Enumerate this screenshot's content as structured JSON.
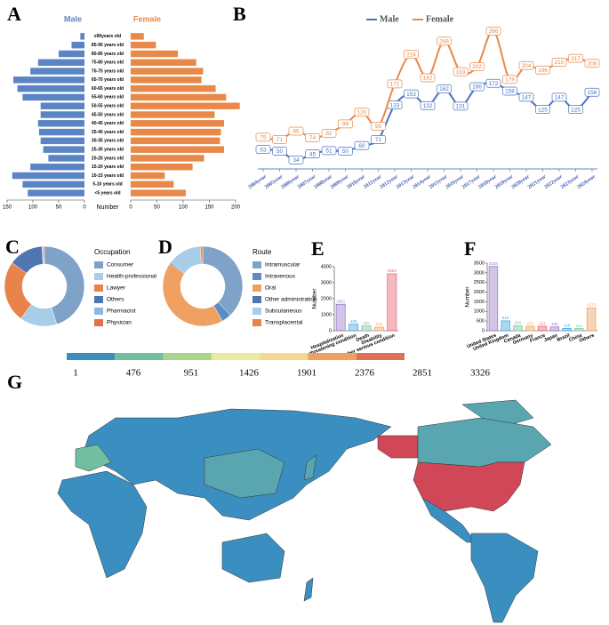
{
  "chart_data": [
    {
      "type": "pyramid",
      "panel_label": "A",
      "categories": [
        "≥90years old",
        "85-90 years old",
        "80-85 years old",
        "75-80 years old",
        "70-75 years old",
        "65-70 years old",
        "60-65 years old",
        "55-60 years old",
        "50-55 years old",
        "45-50 years old",
        "40-45 years old",
        "35-40 years old",
        "30-35 years old",
        "25-30 years old",
        "20-25 years old",
        "15-20 years old",
        "10-15 years old",
        "5-10 years old",
        "<5 years old"
      ],
      "series": [
        {
          "name": "Male",
          "color": "#5b84c4",
          "values": [
            8,
            25,
            50,
            90,
            105,
            138,
            130,
            120,
            85,
            85,
            90,
            88,
            85,
            80,
            70,
            105,
            140,
            120,
            110
          ]
        },
        {
          "name": "Female",
          "color": "#e8894a",
          "values": [
            25,
            48,
            90,
            125,
            138,
            135,
            162,
            182,
            208,
            160,
            178,
            172,
            170,
            178,
            140,
            118,
            65,
            82,
            105
          ]
        }
      ],
      "xlabel": "Number",
      "xlim_left": [
        0,
        150
      ],
      "xticks_left": [
        150,
        100,
        50,
        0
      ],
      "xlim_right": [
        0,
        200
      ],
      "xticks_right": [
        0,
        50,
        100,
        150,
        200
      ]
    },
    {
      "type": "line",
      "panel_label": "B",
      "categories": [
        "2004year",
        "2005year",
        "2006year",
        "2007year",
        "2008year",
        "2009year",
        "2010year",
        "2011year",
        "2012year",
        "2013year",
        "2014year",
        "2015year",
        "2016year",
        "2017year",
        "2018year",
        "2019year",
        "2020year",
        "2021year",
        "2022year",
        "2023year",
        "2024year"
      ],
      "series": [
        {
          "name": "Male",
          "color": "#4a74c0",
          "values": [
            53,
            50,
            34,
            45,
            51,
            50,
            60,
            71,
            133,
            153,
            132,
            162,
            131,
            166,
            172,
            158,
            147,
            125,
            147,
            125,
            156
          ]
        },
        {
          "name": "Female",
          "color": "#e8894a",
          "values": [
            75,
            71,
            86,
            74,
            82,
            99,
            120,
            95,
            171,
            224,
            182,
            248,
            193,
            202,
            266,
            179,
            204,
            196,
            210,
            217,
            208
          ]
        }
      ]
    },
    {
      "type": "donut",
      "panel_label": "C",
      "legend_title": "Occupation",
      "categories": [
        "Consumer",
        "Health-professional",
        "Lawyer",
        "Others",
        "Pharmacist",
        "Physician"
      ],
      "values": [
        45,
        15,
        25,
        14,
        0.5,
        0.5
      ],
      "colors": [
        "#7fa3c8",
        "#a8cde8",
        "#e8834a",
        "#4f76b0",
        "#8fb8de",
        "#e0704a"
      ]
    },
    {
      "type": "donut",
      "panel_label": "D",
      "legend_title": "Route",
      "categories": [
        "Intramuscular",
        "Intravenous",
        "Oral",
        "Other administration",
        "Subcutaneous",
        "Transplacental"
      ],
      "values": [
        38,
        4,
        43,
        0.5,
        14,
        1
      ],
      "colors": [
        "#7fa3c8",
        "#5d8cc4",
        "#f0a060",
        "#4f76b0",
        "#a8cde8",
        "#e8834a"
      ]
    },
    {
      "type": "bar",
      "panel_label": "E",
      "ylabel": "Number",
      "categories": [
        "Hospitalization",
        "Life threatening condition",
        "Death",
        "Disability",
        "Other serious condition"
      ],
      "values": [
        1651,
        405,
        300,
        220,
        3554
      ],
      "colors": [
        "#9b7fc8",
        "#4aa8e0",
        "#7cc8a0",
        "#f0a868",
        "#e86878"
      ],
      "ylim": [
        0,
        4000
      ],
      "yticks": [
        0,
        1000,
        2000,
        3000,
        4000
      ]
    },
    {
      "type": "bar",
      "panel_label": "F",
      "ylabel": "Number",
      "categories": [
        "United States",
        "United Kingdom",
        "Canada",
        "Germany",
        "France",
        "Japan",
        "Brazil",
        "China",
        "Others"
      ],
      "values": [
        3328,
        510,
        260,
        222,
        221,
        195,
        118,
        112,
        1173
      ],
      "colors": [
        "#9b7fc8",
        "#4aa8e0",
        "#7cc8a0",
        "#f0a868",
        "#e86878",
        "#9b7fc8",
        "#4aa8e0",
        "#7cc8a0",
        "#f0a060"
      ],
      "ylim": [
        0,
        3500
      ],
      "yticks": [
        0,
        500,
        1000,
        1500,
        2000,
        2500,
        3000,
        3500
      ]
    },
    {
      "type": "map",
      "panel_label": "G",
      "legend_ticks": [
        1,
        476,
        951,
        1426,
        1901,
        2376,
        2851,
        3326
      ],
      "colors": [
        "#3a8fc0",
        "#72bfa0",
        "#a8d58a",
        "#e8eaa0",
        "#f5d890",
        "#f0a060",
        "#e07058",
        "#d04858"
      ]
    }
  ]
}
